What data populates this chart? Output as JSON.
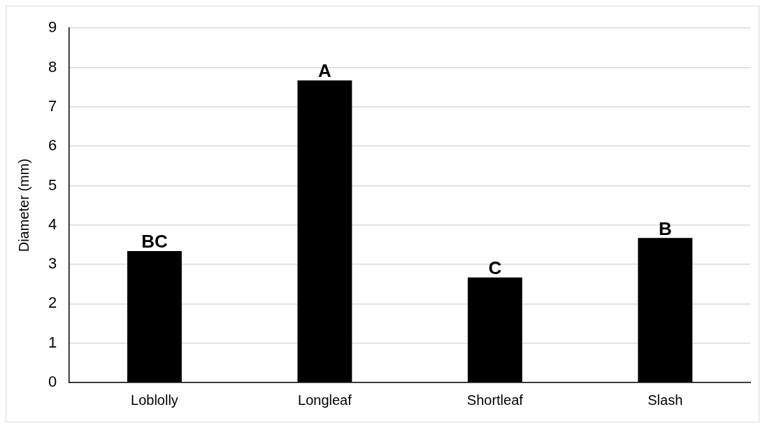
{
  "chart_data": {
    "type": "bar",
    "ylabel": "Diameter (mm)",
    "categories": [
      "Loblolly",
      "Longleaf",
      "Shortleaf",
      "Slash"
    ],
    "values": [
      3.34,
      7.67,
      2.67,
      3.67
    ],
    "color": "#000000",
    "ylim": [
      0,
      9
    ],
    "yticks": [
      0,
      1,
      2,
      3,
      4,
      5,
      6,
      7,
      8,
      9
    ],
    "grid": "y",
    "legend": false,
    "annotations": [
      {
        "text": "BC",
        "x": "Loblolly",
        "y": 3.34
      },
      {
        "text": "A",
        "x": "Longleaf",
        "y": 7.67
      },
      {
        "text": "C",
        "x": "Shortleaf",
        "y": 2.67
      },
      {
        "text": "B",
        "x": "Slash",
        "y": 3.67
      }
    ]
  }
}
